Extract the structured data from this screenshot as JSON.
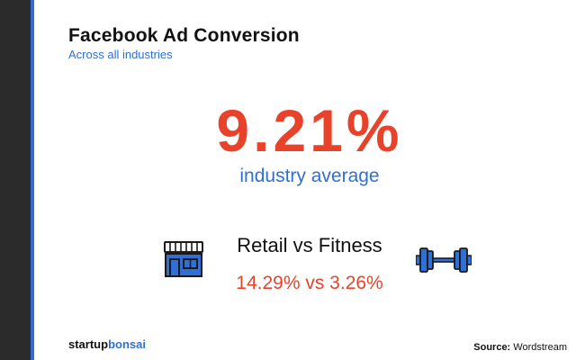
{
  "header": {
    "title": "Facebook Ad Conversion",
    "subtitle": "Across all industries"
  },
  "main_stat": {
    "value": "9.21%",
    "label": "industry average"
  },
  "comparison": {
    "title": "Retail vs Fitness",
    "values": "14.29% vs 3.26%",
    "left_icon": "store-icon",
    "right_icon": "dumbbell-icon"
  },
  "footer": {
    "brand_part1": "startup",
    "brand_part2": "bonsai",
    "source_key": "Source:",
    "source_value": "Wordstream"
  },
  "colors": {
    "accent_blue": "#2f6fd6",
    "accent_red": "#e8432a",
    "sidebar": "#2b2b2b",
    "text": "#111111"
  }
}
